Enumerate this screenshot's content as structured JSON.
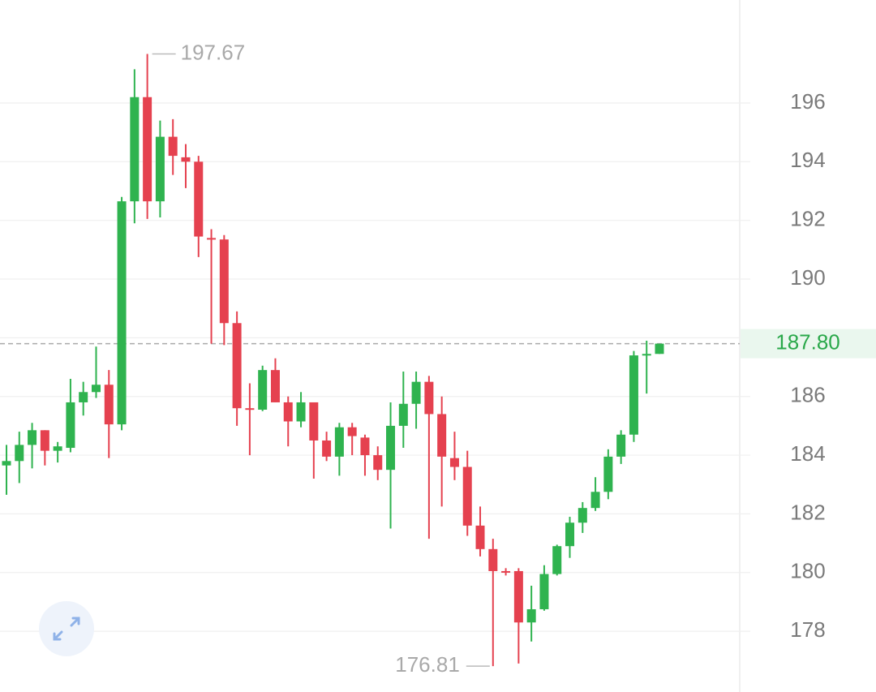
{
  "chart_data": {
    "type": "candlestick",
    "open": [
      183.65,
      183.8,
      184.35,
      184.85,
      184.15,
      184.25,
      185.8,
      186.15,
      186.4,
      185.05,
      192.65,
      196.2,
      192.65,
      194.85,
      194.15,
      194.0,
      191.4,
      191.35,
      188.5,
      185.6,
      185.55,
      186.9,
      185.8,
      185.15,
      185.8,
      184.5,
      183.95,
      184.95,
      184.6,
      184.0,
      183.5,
      185.0,
      185.75,
      186.5,
      185.4,
      183.9,
      183.6,
      181.6,
      180.8,
      180.05,
      180.05,
      178.3,
      178.75,
      179.95,
      180.9,
      181.7,
      182.2,
      182.75,
      183.95,
      184.7,
      187.4,
      187.45
    ],
    "high": [
      184.35,
      184.8,
      185.1,
      184.85,
      184.45,
      186.6,
      186.5,
      187.7,
      186.9,
      192.8,
      197.15,
      197.67,
      195.4,
      195.45,
      194.6,
      194.2,
      191.7,
      191.5,
      188.9,
      186.45,
      187.05,
      187.3,
      186.0,
      186.15,
      185.8,
      184.8,
      185.1,
      185.1,
      184.7,
      184.3,
      185.8,
      186.85,
      186.85,
      186.7,
      186.0,
      184.8,
      184.15,
      182.25,
      181.15,
      180.15,
      180.15,
      179.55,
      180.25,
      180.95,
      181.9,
      182.4,
      183.25,
      184.2,
      184.85,
      187.55,
      187.9,
      187.8
    ],
    "low": [
      182.65,
      183.05,
      183.55,
      183.65,
      183.75,
      184.1,
      185.35,
      185.95,
      183.9,
      184.85,
      191.9,
      192.05,
      192.1,
      193.55,
      193.1,
      190.75,
      187.8,
      187.75,
      185.0,
      184.0,
      185.5,
      185.8,
      184.3,
      184.95,
      183.2,
      183.8,
      183.3,
      184.0,
      183.3,
      183.15,
      181.5,
      184.25,
      184.9,
      181.15,
      182.25,
      183.15,
      181.25,
      180.55,
      176.81,
      179.9,
      176.9,
      177.65,
      178.7,
      179.9,
      180.5,
      181.35,
      182.1,
      182.5,
      183.7,
      184.45,
      186.1,
      187.45
    ],
    "close": [
      183.8,
      184.35,
      184.85,
      184.15,
      184.3,
      185.8,
      186.15,
      186.4,
      185.05,
      192.65,
      196.2,
      192.65,
      194.85,
      194.2,
      194.0,
      191.45,
      191.35,
      188.5,
      185.6,
      185.55,
      186.9,
      185.8,
      185.15,
      185.8,
      184.5,
      183.95,
      184.95,
      184.65,
      184.0,
      183.5,
      185.0,
      185.75,
      186.5,
      185.4,
      183.95,
      183.6,
      181.6,
      180.8,
      180.05,
      180.0,
      178.3,
      178.75,
      179.95,
      180.9,
      181.7,
      182.2,
      182.75,
      183.95,
      184.7,
      187.4,
      187.45,
      187.8
    ],
    "up_color": "#2fb34f",
    "down_color": "#e5414f",
    "ylim": [
      175.93,
      199.51
    ],
    "yticks": [
      178,
      180,
      182,
      184,
      186,
      188,
      190,
      192,
      194,
      196
    ],
    "tick_labels_shown": [
      178,
      180,
      182,
      184,
      186,
      190,
      192,
      194,
      196
    ],
    "grid": true,
    "last_price": {
      "value": 187.8,
      "label": "187.80"
    },
    "high_label": 197.67,
    "low_label": 176.81
  }
}
